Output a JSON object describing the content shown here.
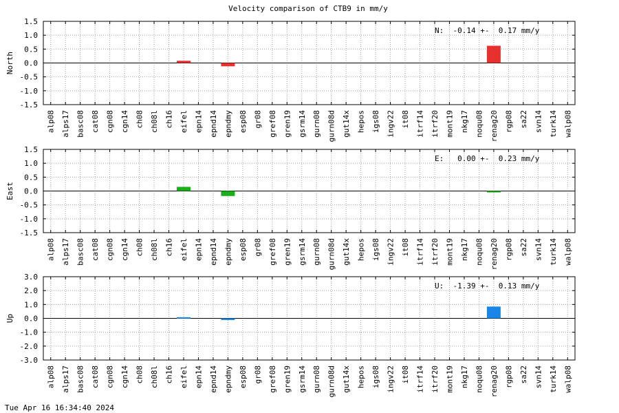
{
  "title": "Velocity comparison of CTB9 in mm/y",
  "timestamp": "Tue Apr 16 16:34:40 2024",
  "chart_data": [
    {
      "type": "bar",
      "ylabel": "North",
      "annotation": "N:  -0.14 +-  0.17 mm/y",
      "ylim": [
        -1.5,
        1.5
      ],
      "yticks": [
        "-1.5",
        "-1.0",
        "-0.5",
        "0.0",
        "0.5",
        "1.0",
        "1.5"
      ],
      "color": "#e8312e",
      "grid": true,
      "categories": [
        "alp08",
        "alps17",
        "basc08",
        "cat08",
        "cgn08",
        "cgn14",
        "ch08",
        "ch08l",
        "ch16",
        "eifel",
        "epn14",
        "epnd14",
        "epndmy",
        "esp08",
        "gr08",
        "gref08",
        "gren19",
        "gsrm14",
        "gurn08",
        "gurn08d",
        "gut14x",
        "hepos",
        "igs08",
        "ingv22",
        "it08",
        "itrf14",
        "itrf20",
        "mont19",
        "nkg17",
        "noqu08",
        "renag20",
        "rgp08",
        "sa22",
        "svn14",
        "turk14",
        "walp08"
      ],
      "values": [
        0,
        0,
        0,
        0,
        0,
        0,
        0,
        0,
        0,
        0.08,
        0,
        0,
        -0.12,
        0,
        0,
        0,
        0,
        0,
        0,
        0,
        0,
        0,
        0,
        0,
        0,
        0,
        0,
        0,
        0,
        0,
        0.62,
        0,
        0,
        0,
        0,
        0
      ]
    },
    {
      "type": "bar",
      "ylabel": "East",
      "annotation": "E:   0.00 +-  0.23 mm/y",
      "ylim": [
        -1.5,
        1.5
      ],
      "yticks": [
        "-1.5",
        "-1.0",
        "-0.5",
        "0.0",
        "0.5",
        "1.0",
        "1.5"
      ],
      "color": "#1aae1a",
      "grid": true,
      "categories": [
        "alp08",
        "alps17",
        "basc08",
        "cat08",
        "cgn08",
        "cgn14",
        "ch08",
        "ch08l",
        "ch16",
        "eifel",
        "epn14",
        "epnd14",
        "epndmy",
        "esp08",
        "gr08",
        "gref08",
        "gren19",
        "gsrm14",
        "gurn08",
        "gurn08d",
        "gut14x",
        "hepos",
        "igs08",
        "ingv22",
        "it08",
        "itrf14",
        "itrf20",
        "mont19",
        "nkg17",
        "noqu08",
        "renag20",
        "rgp08",
        "sa22",
        "svn14",
        "turk14",
        "walp08"
      ],
      "values": [
        0,
        0,
        0,
        0,
        0,
        0,
        0,
        0,
        0,
        0.15,
        0,
        0,
        -0.18,
        0,
        0,
        0,
        0,
        0,
        0,
        0,
        0,
        0,
        0,
        0,
        0,
        0,
        0,
        0,
        0,
        0,
        -0.05,
        0,
        0,
        0,
        0,
        0
      ]
    },
    {
      "type": "bar",
      "ylabel": "Up",
      "annotation": "U:  -1.39 +-  0.13 mm/y",
      "ylim": [
        -3.0,
        3.0
      ],
      "yticks": [
        "-3.0",
        "-2.0",
        "-1.0",
        "0.0",
        "1.0",
        "2.0",
        "3.0"
      ],
      "color": "#1a86e8",
      "grid": true,
      "categories": [
        "alp08",
        "alps17",
        "basc08",
        "cat08",
        "cgn08",
        "cgn14",
        "ch08",
        "ch08l",
        "ch16",
        "eifel",
        "epn14",
        "epnd14",
        "epndmy",
        "esp08",
        "gr08",
        "gref08",
        "gren19",
        "gsrm14",
        "gurn08",
        "gurn08d",
        "gut14x",
        "hepos",
        "igs08",
        "ingv22",
        "it08",
        "itrf14",
        "itrf20",
        "mont19",
        "nkg17",
        "noqu08",
        "renag20",
        "rgp08",
        "sa22",
        "svn14",
        "turk14",
        "walp08"
      ],
      "values": [
        0,
        0,
        0,
        0,
        0,
        0,
        0,
        0,
        0,
        0.08,
        0,
        0,
        -0.12,
        0,
        0,
        0,
        0,
        0,
        0,
        0,
        0,
        0,
        0,
        0,
        0,
        0,
        0,
        0,
        0,
        0,
        0.85,
        0,
        0,
        0,
        0,
        0
      ]
    }
  ]
}
